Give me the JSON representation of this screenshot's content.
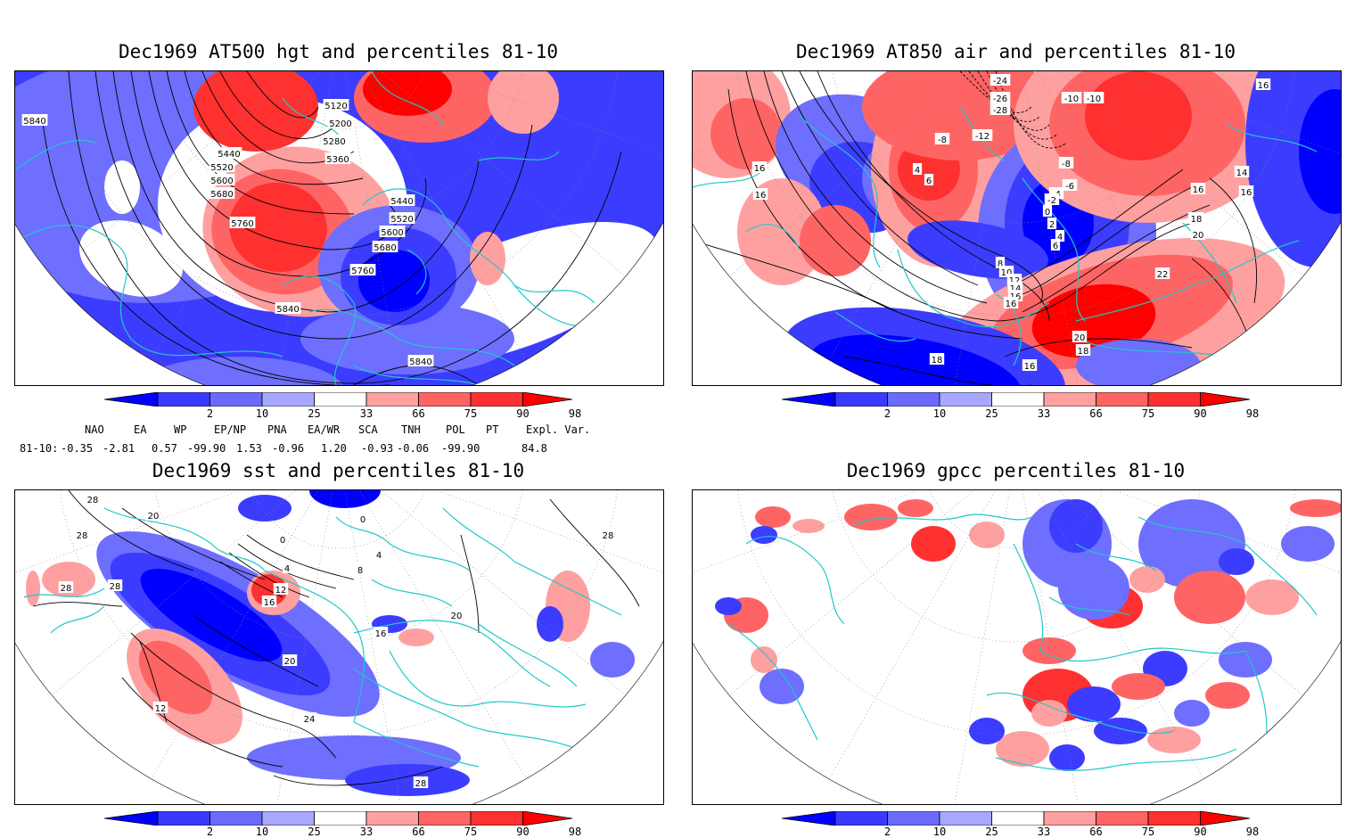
{
  "panels": [
    {
      "title": "Dec1969 AT500 hgt and percentiles 81-10",
      "contour_labels": [
        "5840",
        "5120",
        "5200",
        "5280",
        "5360",
        "5440",
        "5520",
        "5600",
        "5680",
        "5760",
        "5440",
        "5520",
        "5600",
        "5680",
        "5760",
        "5840",
        "5840"
      ]
    },
    {
      "title": "Dec1969 AT850 air and percentiles 81-10",
      "contour_labels": [
        "-24",
        "-26",
        "-28",
        "-10",
        "-10",
        "16",
        "-8",
        "-12",
        "4",
        "6",
        "-8",
        "-6",
        "-4",
        "-2",
        "0",
        "2",
        "4",
        "6",
        "8",
        "10",
        "12",
        "14",
        "16",
        "16",
        "14",
        "16",
        "16",
        "18",
        "20",
        "22",
        "16",
        "16",
        "14",
        "20",
        "18",
        "16",
        "18"
      ]
    },
    {
      "title": "Dec1969 sst and percentiles 81-10",
      "contour_labels": [
        "28",
        "20",
        "28",
        "0",
        "0",
        "4",
        "4",
        "8",
        "12",
        "16",
        "28",
        "28",
        "28",
        "20",
        "16",
        "20",
        "24",
        "28",
        "12"
      ]
    },
    {
      "title": "Dec1969 gpcc percentiles 81-10",
      "contour_labels": []
    }
  ],
  "colorbar": {
    "labels": [
      "2",
      "10",
      "25",
      "33",
      "66",
      "75",
      "90",
      "98"
    ],
    "colors": [
      "#0000ff",
      "#3a3aff",
      "#6a6aff",
      "#a8a8ff",
      "#ffffff",
      "#ffa0a0",
      "#ff6464",
      "#ff3030",
      "#ff0000"
    ]
  },
  "teleconnections": {
    "headers": [
      "NAO",
      "EA",
      "WP",
      "EP/NP",
      "PNA",
      "EA/WR",
      "SCA",
      "TNH",
      "POL",
      "PT",
      "Expl. Var."
    ],
    "row_label": "81-10:",
    "values": [
      "-0.35",
      "-2.81",
      "0.57",
      "-99.90",
      "1.53",
      "-0.96",
      "1.20",
      "-0.93",
      "-0.06",
      "-99.90",
      "84.8"
    ]
  },
  "colors": {
    "coast": "#20c8c8",
    "contour": "#000000"
  }
}
